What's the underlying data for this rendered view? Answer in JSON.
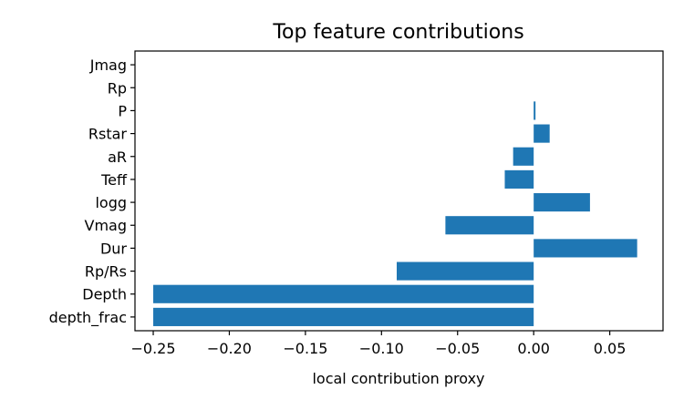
{
  "chart_data": {
    "type": "bar",
    "orientation": "horizontal",
    "title": "Top feature contributions",
    "xlabel": "local contribution proxy",
    "ylabel": "",
    "categories": [
      "depth_frac",
      "Depth",
      "Rp/Rs",
      "Dur",
      "Vmag",
      "logg",
      "Teff",
      "aR",
      "Rstar",
      "P",
      "Rp",
      "Jmag"
    ],
    "values": [
      -0.25,
      -0.25,
      -0.09,
      0.068,
      -0.058,
      0.037,
      -0.019,
      -0.0135,
      0.0105,
      0.0012,
      0.0,
      0.0
    ],
    "xlim": [
      -0.262,
      0.085
    ],
    "xticks": [
      -0.25,
      -0.2,
      -0.15,
      -0.1,
      -0.05,
      0.0,
      0.05
    ],
    "xtick_labels": [
      "−0.25",
      "−0.20",
      "−0.15",
      "−0.10",
      "−0.05",
      "0.00",
      "0.05"
    ],
    "bar_color": "#1f77b4",
    "grid": false,
    "legend": "none"
  }
}
